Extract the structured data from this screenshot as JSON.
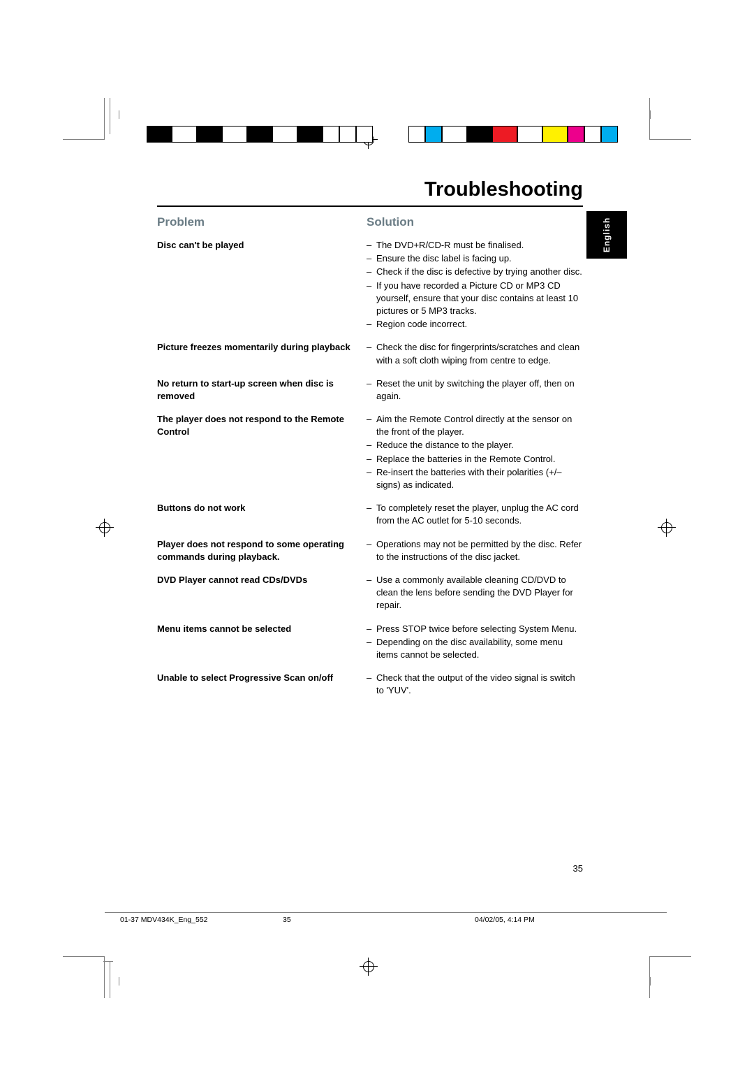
{
  "section_title": "Troubleshooting",
  "lang_tab": "English",
  "headers": {
    "problem": "Problem",
    "solution": "Solution"
  },
  "rows": [
    {
      "problem": "Disc can't be played",
      "solutions": [
        "The DVD+R/CD-R must be finalised.",
        "Ensure the disc label is facing up.",
        "Check if the disc is defective by trying another disc.",
        "If you have recorded a Picture CD or MP3 CD yourself, ensure that your disc contains at least 10 pictures or 5 MP3 tracks.",
        "Region code incorrect."
      ]
    },
    {
      "problem": "Picture freezes momentarily during playback",
      "solutions": [
        "Check the disc for fingerprints/scratches and clean with a soft cloth wiping from centre to edge."
      ]
    },
    {
      "problem": "No return to start-up screen when disc is removed",
      "solutions": [
        "Reset the unit by switching the player off, then on again."
      ]
    },
    {
      "problem": "The player does not respond to the Remote Control",
      "solutions": [
        "Aim the Remote Control directly at the sensor on the front of the player.",
        "Reduce the distance to the player.",
        "Replace the batteries in the Remote Control.",
        "Re-insert the batteries with their polarities (+/– signs) as indicated."
      ]
    },
    {
      "problem": "Buttons do not work",
      "solutions": [
        "To completely reset the player, unplug the AC cord from the AC outlet for 5-10 seconds."
      ]
    },
    {
      "problem": "Player does not respond to some operating commands during playback.",
      "solutions": [
        "Operations may not be permitted by the disc. Refer to the instructions of the disc jacket."
      ]
    },
    {
      "problem": "DVD Player cannot read CDs/DVDs",
      "solutions": [
        "Use a commonly available cleaning CD/DVD to clean the lens before sending the DVD Player for repair."
      ]
    },
    {
      "problem": "Menu items cannot be selected",
      "solutions": [
        "Press STOP twice before selecting System Menu.",
        "Depending on the disc availability, some menu items cannot be selected."
      ]
    },
    {
      "problem": "Unable to select Progressive Scan on/off",
      "solutions": [
        "Check that the output of the video signal is switch to 'YUV'."
      ]
    }
  ],
  "page_number": "35",
  "footer": {
    "doc_name": "01-37 MDV434K_Eng_552",
    "page": "35",
    "timestamp": "04/02/05, 4:14 PM"
  },
  "colorbars": {
    "left": [
      "#000000",
      "#ffffff",
      "#000000",
      "#ffffff",
      "#000000",
      "#ffffff",
      "#000000",
      "#ffffff",
      "#ffffff",
      "#ffffff"
    ],
    "left_widths": [
      "big",
      "big",
      "big",
      "big",
      "big",
      "big",
      "big",
      "",
      "",
      ""
    ],
    "right": [
      "#ffffff",
      "#00adee",
      "#ffffff",
      "#000000",
      "#ed1b24",
      "#ffffff",
      "#fff100",
      "#ed008c",
      "#ffffff",
      "#00adee"
    ],
    "right_widths": [
      "",
      "",
      "big",
      "big",
      "big",
      "big",
      "big",
      "",
      "",
      ""
    ]
  },
  "reg_color": "#000000",
  "crop_color": "#808080",
  "header_color": "#6a7c85"
}
